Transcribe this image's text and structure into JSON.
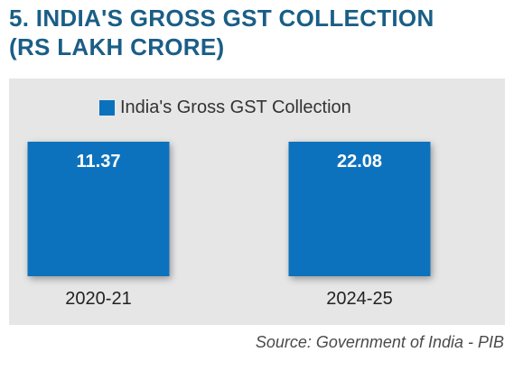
{
  "title_line1": "5. INDIA'S GROSS GST COLLECTION",
  "title_line2": "(RS LAKH CRORE)",
  "source": "Source: Government of India - PIB",
  "colors": {
    "bar": "#0a72bd",
    "title": "#1a5e86",
    "panel": "#e6e6e6"
  },
  "chart_data": {
    "type": "bar",
    "categories": [
      "2020-21",
      "2024-25"
    ],
    "series": [
      {
        "name": "India's Gross GST Collection",
        "values": [
          11.37,
          22.08
        ]
      }
    ],
    "data_labels": [
      "11.37",
      "22.08"
    ],
    "legend": "top-center",
    "grid": false
  }
}
